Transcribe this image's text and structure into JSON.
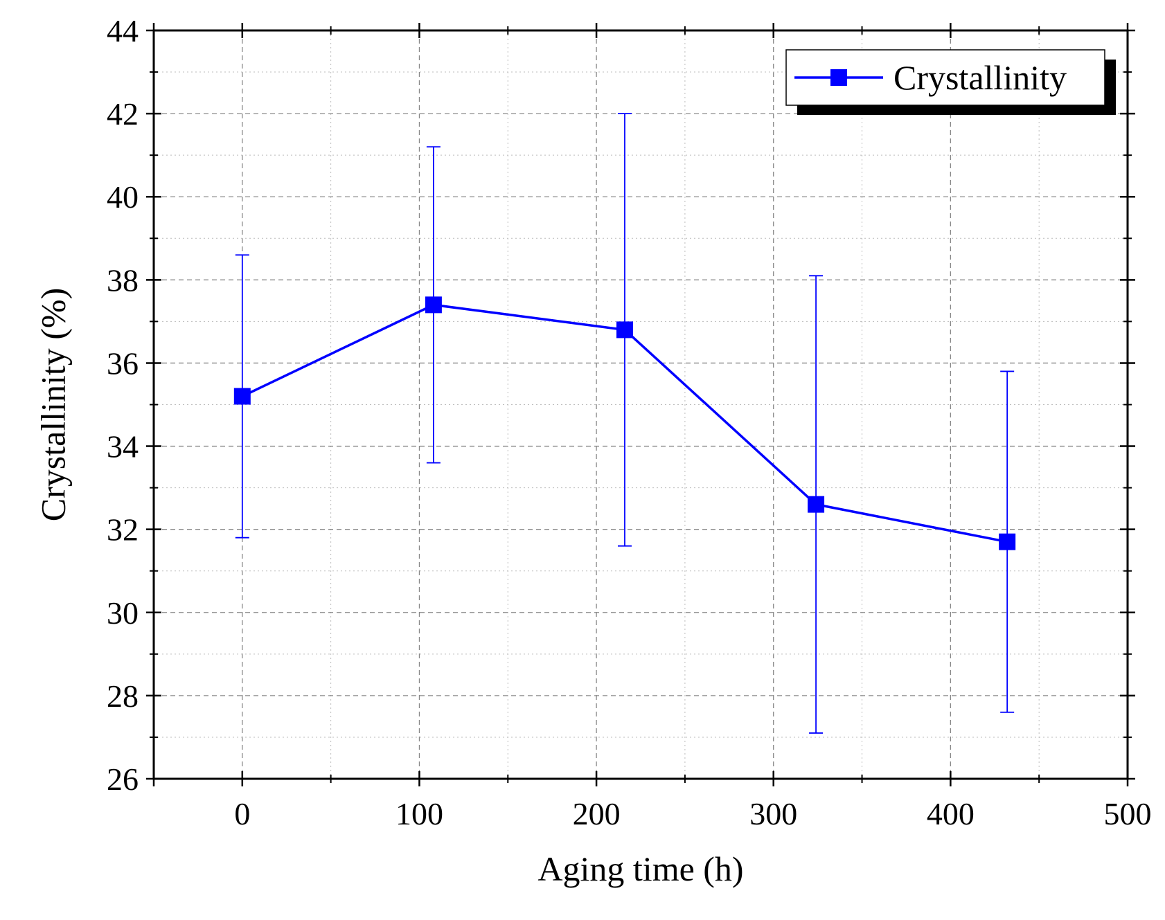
{
  "chart_data": {
    "type": "line",
    "title": "",
    "xlabel": "Aging time (h)",
    "ylabel": "Crystallinity (%)",
    "xlim": [
      -50,
      500
    ],
    "ylim": [
      26,
      44
    ],
    "x_major_ticks": [
      0,
      100,
      200,
      300,
      400,
      500
    ],
    "x_minor_ticks": [
      -50,
      50,
      150,
      250,
      350,
      450
    ],
    "x_tick_labels": [
      "0",
      "100",
      "200",
      "300",
      "400",
      "500"
    ],
    "y_major_ticks": [
      26,
      28,
      30,
      32,
      34,
      36,
      38,
      40,
      42,
      44
    ],
    "y_minor_ticks": [
      27,
      29,
      31,
      33,
      35,
      37,
      39,
      41,
      43
    ],
    "y_tick_labels": [
      "26",
      "28",
      "30",
      "32",
      "34",
      "36",
      "38",
      "40",
      "42",
      "44"
    ],
    "grid": true,
    "legend_position": "top-right",
    "series": [
      {
        "name": "Crystallinity",
        "color": "#0000ff",
        "marker": "square",
        "x": [
          0,
          108,
          216,
          324,
          432
        ],
        "y": [
          35.2,
          37.4,
          36.8,
          32.6,
          31.7
        ],
        "error_low": [
          31.8,
          33.6,
          31.6,
          27.1,
          27.6
        ],
        "error_high": [
          38.6,
          41.2,
          42.0,
          38.1,
          35.8
        ]
      }
    ]
  }
}
